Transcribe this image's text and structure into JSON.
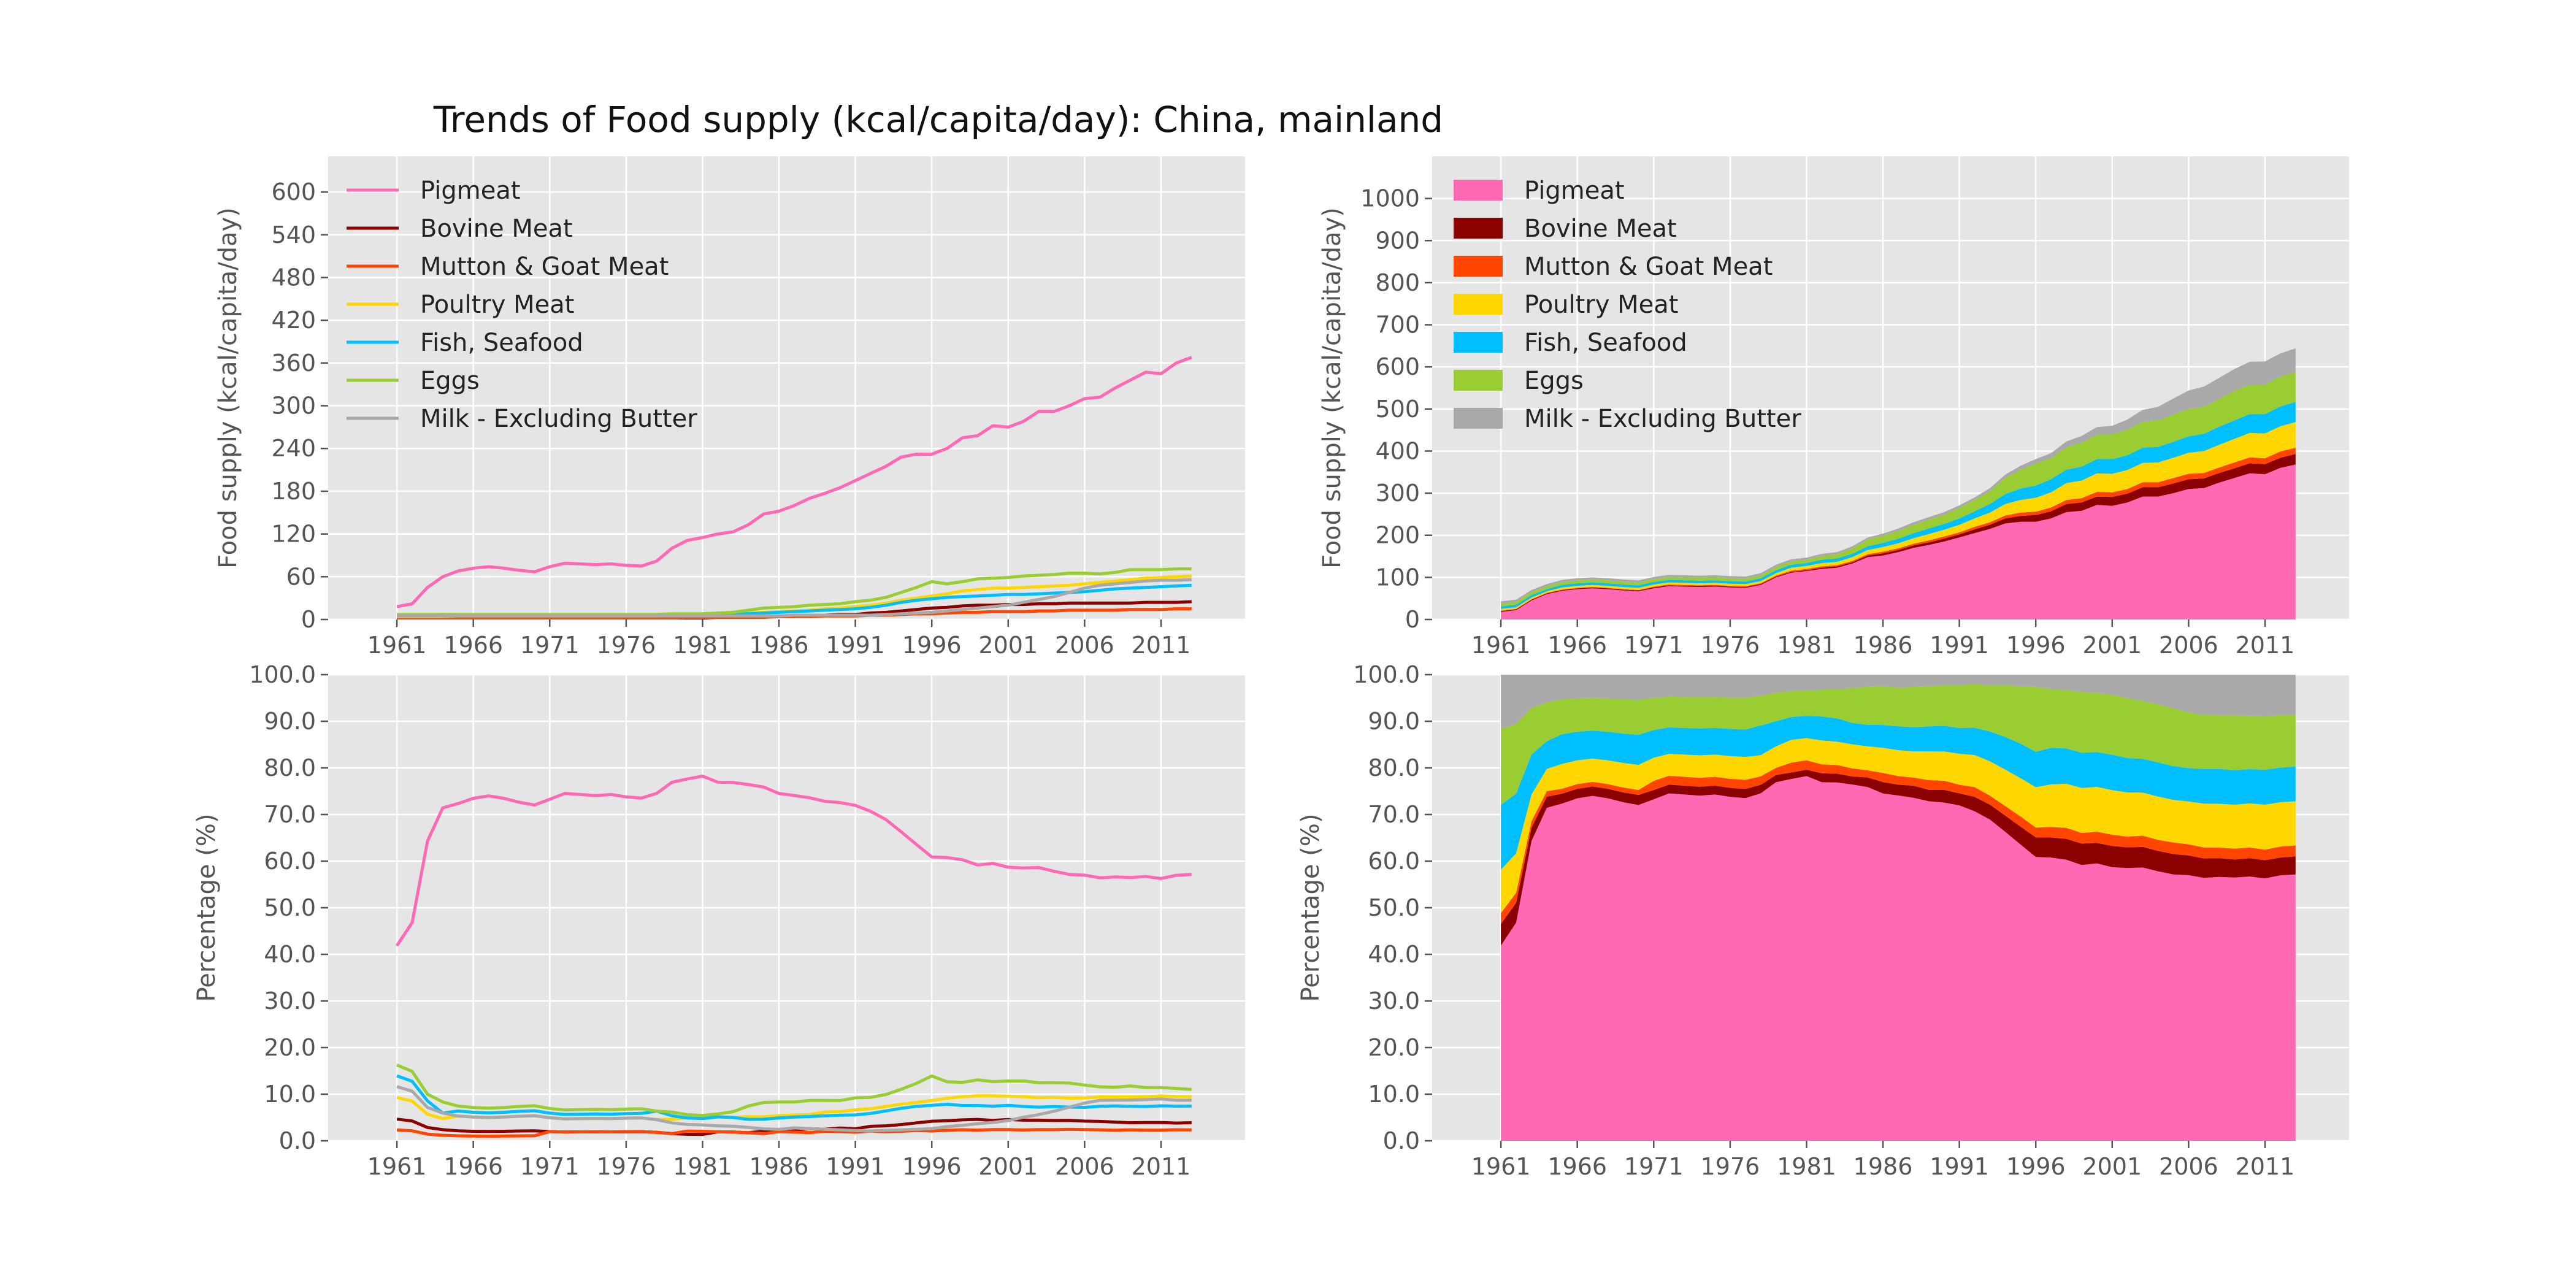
{
  "title": "Trends of  Food supply (kcal/capita/day): China, mainland",
  "colors": {
    "Pigmeat": "#ff69b4",
    "Bovine Meat": "#8b0000",
    "Mutton & Goat Meat": "#ff4500",
    "Poultry Meat": "#ffd700",
    "Fish, Seafood": "#00bfff",
    "Eggs": "#9acd32",
    "Milk - Excluding Butter": "#a9a9a9",
    "background": "#e5e5e5",
    "grid": "#ffffff"
  },
  "chart_data": [
    {
      "type": "line",
      "ylabel": "Food supply (kcal/capita/day)",
      "ylim": [
        0,
        650
      ],
      "yticks": [
        "0",
        "60",
        "120",
        "180",
        "240",
        "300",
        "360",
        "420",
        "480",
        "540",
        "600"
      ],
      "xticks": [
        "1961",
        "1966",
        "1971",
        "1976",
        "1981",
        "1986",
        "1991",
        "1996",
        "2001",
        "2006",
        "2011"
      ],
      "legend": "top-left",
      "grid": true
    },
    {
      "type": "area",
      "ylabel": "Food supply (kcal/capita/day)",
      "ylim": [
        0,
        1100
      ],
      "yticks": [
        "0",
        "100",
        "200",
        "300",
        "400",
        "500",
        "600",
        "700",
        "800",
        "900",
        "1000"
      ],
      "xticks": [
        "1961",
        "1966",
        "1971",
        "1976",
        "1981",
        "1986",
        "1991",
        "1996",
        "2001",
        "2006",
        "2011"
      ],
      "legend": "top-left",
      "grid": true
    },
    {
      "type": "line",
      "ylabel": "Percentage (%)",
      "ylim": [
        0,
        100
      ],
      "yticks": [
        "0.0",
        "10.0",
        "20.0",
        "30.0",
        "40.0",
        "50.0",
        "60.0",
        "70.0",
        "80.0",
        "90.0",
        "100.0"
      ],
      "xticks": [
        "1961",
        "1966",
        "1971",
        "1976",
        "1981",
        "1986",
        "1991",
        "1996",
        "2001",
        "2006",
        "2011"
      ],
      "grid": true
    },
    {
      "type": "area",
      "ylabel": "Percentage (%)",
      "ylim": [
        0,
        100
      ],
      "yticks": [
        "0.0",
        "10.0",
        "20.0",
        "30.0",
        "40.0",
        "50.0",
        "60.0",
        "70.0",
        "80.0",
        "90.0",
        "100.0"
      ],
      "xticks": [
        "1961",
        "1966",
        "1971",
        "1976",
        "1981",
        "1986",
        "1991",
        "1996",
        "2001",
        "2006",
        "2011"
      ],
      "grid": true
    }
  ],
  "series_data": {
    "years": [
      1961,
      1962,
      1963,
      1964,
      1965,
      1966,
      1967,
      1968,
      1969,
      1970,
      1971,
      1972,
      1973,
      1974,
      1975,
      1976,
      1977,
      1978,
      1979,
      1980,
      1981,
      1982,
      1983,
      1984,
      1985,
      1986,
      1987,
      1988,
      1989,
      1990,
      1991,
      1992,
      1993,
      1994,
      1995,
      1996,
      1997,
      1998,
      1999,
      2000,
      2001,
      2002,
      2003,
      2004,
      2005,
      2006,
      2007,
      2008,
      2009,
      2010,
      2011,
      2012,
      2013
    ],
    "series": [
      {
        "name": "Pigmeat",
        "values": [
          18,
          22,
          45,
          60,
          68,
          72,
          74,
          72,
          69,
          67,
          74,
          79,
          78,
          77,
          78,
          76,
          75,
          82,
          100,
          111,
          115,
          120,
          123,
          133,
          148,
          152,
          160,
          170,
          177,
          185,
          195,
          205,
          215,
          228,
          232,
          232,
          240,
          255,
          258,
          272,
          270,
          278,
          292,
          292,
          300,
          310,
          312,
          325,
          336,
          347,
          345,
          360,
          368
        ]
      },
      {
        "name": "Bovine Meat",
        "values": [
          2,
          2,
          2,
          2,
          2,
          2,
          2,
          2,
          2,
          2,
          2,
          2,
          2,
          2,
          2,
          2,
          2,
          2,
          2,
          2,
          2,
          3,
          3,
          3,
          4,
          5,
          5,
          6,
          6,
          7,
          7,
          9,
          10,
          12,
          14,
          16,
          17,
          19,
          20,
          20,
          21,
          21,
          22,
          22,
          23,
          23,
          23,
          23,
          23,
          24,
          24,
          24,
          25
        ]
      },
      {
        "name": "Mutton & Goat Meat",
        "values": [
          1,
          1,
          1,
          1,
          1,
          1,
          1,
          1,
          1,
          1,
          2,
          2,
          2,
          2,
          2,
          2,
          2,
          2,
          2,
          3,
          3,
          3,
          3,
          3,
          3,
          4,
          4,
          4,
          5,
          5,
          5,
          6,
          6,
          7,
          8,
          8,
          9,
          10,
          10,
          11,
          11,
          11,
          12,
          12,
          13,
          13,
          13,
          13,
          14,
          14,
          14,
          15,
          15
        ]
      },
      {
        "name": "Poultry Meat",
        "values": [
          4,
          4,
          4,
          4,
          5,
          5,
          5,
          5,
          5,
          5,
          5,
          5,
          5,
          5,
          5,
          5,
          5,
          5,
          6,
          7,
          7,
          8,
          8,
          9,
          10,
          11,
          12,
          13,
          15,
          16,
          18,
          20,
          23,
          27,
          30,
          33,
          36,
          40,
          42,
          44,
          44,
          45,
          46,
          47,
          48,
          50,
          52,
          54,
          56,
          58,
          59,
          60,
          61
        ]
      },
      {
        "name": "Fish, Seafood",
        "values": [
          6,
          6,
          6,
          5,
          6,
          6,
          6,
          6,
          6,
          6,
          6,
          6,
          6,
          6,
          6,
          6,
          6,
          7,
          7,
          7,
          7,
          8,
          8,
          8,
          9,
          10,
          11,
          12,
          13,
          14,
          15,
          17,
          20,
          24,
          27,
          29,
          31,
          32,
          33,
          34,
          35,
          35,
          36,
          37,
          38,
          39,
          41,
          43,
          44,
          45,
          46,
          47,
          48
        ]
      },
      {
        "name": "Eggs",
        "values": [
          7,
          7,
          7,
          7,
          7,
          7,
          7,
          7,
          7,
          7,
          7,
          7,
          7,
          7,
          7,
          7,
          7,
          7,
          8,
          8,
          8,
          9,
          10,
          13,
          16,
          17,
          18,
          20,
          21,
          22,
          25,
          27,
          31,
          38,
          45,
          53,
          50,
          53,
          57,
          58,
          59,
          61,
          62,
          63,
          65,
          65,
          64,
          66,
          70,
          70,
          70,
          71,
          71
        ]
      },
      {
        "name": "Milk - Excluding Butter",
        "values": [
          5,
          5,
          5,
          5,
          5,
          5,
          5,
          5,
          5,
          5,
          5,
          5,
          5,
          5,
          5,
          5,
          5,
          5,
          5,
          5,
          5,
          5,
          5,
          5,
          5,
          5,
          6,
          6,
          6,
          6,
          6,
          6,
          7,
          8,
          9,
          10,
          12,
          14,
          16,
          18,
          20,
          24,
          28,
          32,
          38,
          44,
          48,
          50,
          52,
          54,
          55,
          55,
          56
        ]
      }
    ]
  },
  "legend": {
    "items": [
      "Pigmeat",
      "Bovine Meat",
      "Mutton & Goat Meat",
      "Poultry Meat",
      "Fish, Seafood",
      "Eggs",
      "Milk - Excluding Butter"
    ]
  }
}
